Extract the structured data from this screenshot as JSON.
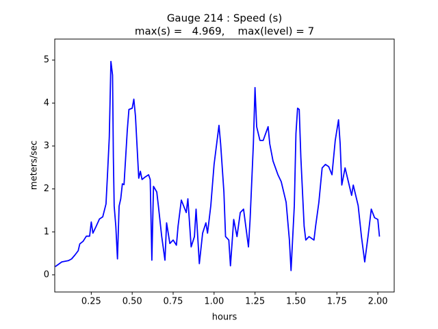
{
  "chart_data": {
    "type": "line",
    "title": "Gauge 214 : Speed (s)",
    "subtitle": "max(s) =   4.969,    max(level) = 7",
    "x_label": "hours",
    "y_label": "meters/sec",
    "xlim": [
      0.027,
      2.1
    ],
    "ylim": [
      -0.4,
      5.49
    ],
    "xticks": [
      {
        "value": 0.25,
        "label": "0.25"
      },
      {
        "value": 0.5,
        "label": "0.50"
      },
      {
        "value": 0.75,
        "label": "0.75"
      },
      {
        "value": 1.0,
        "label": "1.00"
      },
      {
        "value": 1.25,
        "label": "1.25"
      },
      {
        "value": 1.5,
        "label": "1.50"
      },
      {
        "value": 1.75,
        "label": "1.75"
      },
      {
        "value": 2.0,
        "label": "2.00"
      }
    ],
    "yticks": [
      0,
      1,
      2,
      3,
      4,
      5
    ],
    "grid": false,
    "series": [
      {
        "color": "#0000ff",
        "x": [
          0.03,
          0.07,
          0.11,
          0.13,
          0.15,
          0.17,
          0.18,
          0.2,
          0.22,
          0.24,
          0.25,
          0.26,
          0.28,
          0.3,
          0.32,
          0.34,
          0.35,
          0.36,
          0.37,
          0.38,
          0.385,
          0.39,
          0.4,
          0.41,
          0.42,
          0.43,
          0.44,
          0.45,
          0.46,
          0.47,
          0.48,
          0.5,
          0.51,
          0.52,
          0.54,
          0.55,
          0.56,
          0.58,
          0.6,
          0.61,
          0.62,
          0.63,
          0.65,
          0.66,
          0.68,
          0.7,
          0.71,
          0.73,
          0.75,
          0.77,
          0.78,
          0.8,
          0.83,
          0.84,
          0.86,
          0.88,
          0.89,
          0.91,
          0.93,
          0.95,
          0.96,
          0.98,
          1.0,
          1.03,
          1.04,
          1.06,
          1.07,
          1.09,
          1.1,
          1.12,
          1.14,
          1.16,
          1.18,
          1.21,
          1.22,
          1.24,
          1.25,
          1.26,
          1.28,
          1.3,
          1.33,
          1.34,
          1.36,
          1.39,
          1.41,
          1.44,
          1.46,
          1.47,
          1.49,
          1.5,
          1.51,
          1.52,
          1.53,
          1.55,
          1.56,
          1.58,
          1.61,
          1.62,
          1.64,
          1.66,
          1.68,
          1.7,
          1.72,
          1.74,
          1.76,
          1.77,
          1.78,
          1.8,
          1.82,
          1.84,
          1.85,
          1.88,
          1.9,
          1.92,
          1.94,
          1.96,
          1.98,
          2.0,
          2.01
        ],
        "values": [
          0.19,
          0.3,
          0.33,
          0.37,
          0.46,
          0.56,
          0.72,
          0.78,
          0.9,
          0.9,
          1.23,
          0.97,
          1.13,
          1.3,
          1.35,
          1.65,
          2.4,
          3.2,
          4.969,
          4.65,
          2.73,
          1.6,
          1.13,
          0.37,
          1.6,
          1.77,
          2.12,
          2.1,
          2.73,
          3.37,
          3.85,
          3.88,
          4.09,
          3.69,
          2.25,
          2.41,
          2.22,
          2.28,
          2.33,
          2.22,
          0.34,
          2.06,
          1.93,
          1.6,
          0.9,
          0.34,
          1.21,
          0.73,
          0.81,
          0.69,
          1.13,
          1.74,
          1.45,
          1.77,
          0.65,
          0.89,
          1.53,
          0.26,
          0.97,
          1.21,
          0.97,
          1.61,
          2.57,
          3.48,
          3.05,
          1.93,
          0.89,
          0.81,
          0.21,
          1.29,
          0.89,
          1.45,
          1.53,
          0.65,
          1.29,
          3.05,
          4.36,
          3.45,
          3.13,
          3.13,
          3.45,
          3.05,
          2.65,
          2.33,
          2.17,
          1.69,
          0.81,
          0.1,
          1.61,
          3.29,
          3.88,
          3.85,
          2.73,
          1.13,
          0.81,
          0.89,
          0.81,
          1.13,
          1.69,
          2.49,
          2.57,
          2.52,
          2.33,
          3.13,
          3.61,
          3.05,
          2.09,
          2.49,
          2.17,
          1.85,
          2.09,
          1.61,
          0.89,
          0.3,
          0.89,
          1.53,
          1.33,
          1.29,
          0.89
        ]
      }
    ]
  }
}
